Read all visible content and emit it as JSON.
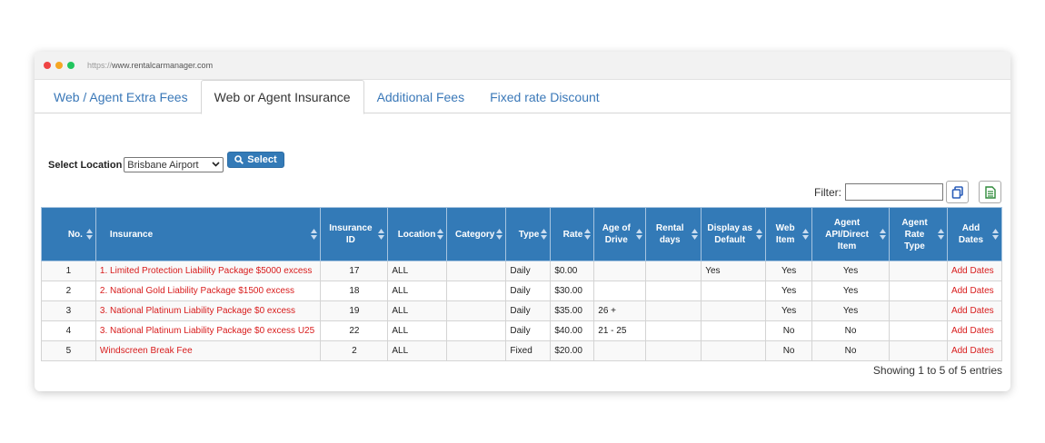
{
  "browser": {
    "url_protocol": "https://",
    "url_domain": "www.rentalcarmanager.com",
    "dots": [
      "#ef4444",
      "#f5a623",
      "#22c55e"
    ]
  },
  "tabs": [
    {
      "label": "Web / Agent Extra Fees",
      "active": false
    },
    {
      "label": "Web or Agent Insurance",
      "active": true
    },
    {
      "label": "Additional Fees",
      "active": false
    },
    {
      "label": "Fixed rate Discount",
      "active": false
    }
  ],
  "location": {
    "label": "Select Location",
    "selected": "Brisbane Airport",
    "button_label": "Select"
  },
  "filter": {
    "label": "Filter:",
    "value": ""
  },
  "table": {
    "headers": [
      "No.",
      "Insurance",
      "Insurance ID",
      "Location",
      "Category",
      "Type",
      "Rate",
      "Age of Drive",
      "Rental days",
      "Display as Default",
      "Web Item",
      "Agent API/Direct Item",
      "Agent Rate Type",
      "Add Dates"
    ],
    "rows": [
      {
        "no": "1",
        "insurance": "1. Limited Protection Liability Package $5000 excess",
        "id": "17",
        "location": "ALL",
        "category": "",
        "type": "Daily",
        "rate": "$0.00",
        "age": "",
        "days": "",
        "default": "Yes",
        "web": "Yes",
        "agent": "Yes",
        "rate_type": "",
        "add": "Add Dates"
      },
      {
        "no": "2",
        "insurance": "2. National Gold Liability Package $1500 excess",
        "id": "18",
        "location": "ALL",
        "category": "",
        "type": "Daily",
        "rate": "$30.00",
        "age": "",
        "days": "",
        "default": "",
        "web": "Yes",
        "agent": "Yes",
        "rate_type": "",
        "add": "Add Dates"
      },
      {
        "no": "3",
        "insurance": "3. National Platinum Liability Package $0 excess",
        "id": "19",
        "location": "ALL",
        "category": "",
        "type": "Daily",
        "rate": "$35.00",
        "age": "26 +",
        "days": "",
        "default": "",
        "web": "Yes",
        "agent": "Yes",
        "rate_type": "",
        "add": "Add Dates"
      },
      {
        "no": "4",
        "insurance": "3. National Platinum Liability Package $0 excess U25",
        "id": "22",
        "location": "ALL",
        "category": "",
        "type": "Daily",
        "rate": "$40.00",
        "age": "21 - 25",
        "days": "",
        "default": "",
        "web": "No",
        "agent": "No",
        "rate_type": "",
        "add": "Add Dates"
      },
      {
        "no": "5",
        "insurance": "Windscreen Break Fee",
        "id": "2",
        "location": "ALL",
        "category": "",
        "type": "Fixed",
        "rate": "$20.00",
        "age": "",
        "days": "",
        "default": "",
        "web": "No",
        "agent": "No",
        "rate_type": "",
        "add": "Add Dates"
      }
    ]
  },
  "footer": {
    "info": "Showing 1 to 5 of 5 entries"
  },
  "colors": {
    "header_bg": "#337ab7",
    "link_red": "#d81c1c",
    "tab_link": "#3a78b8"
  }
}
